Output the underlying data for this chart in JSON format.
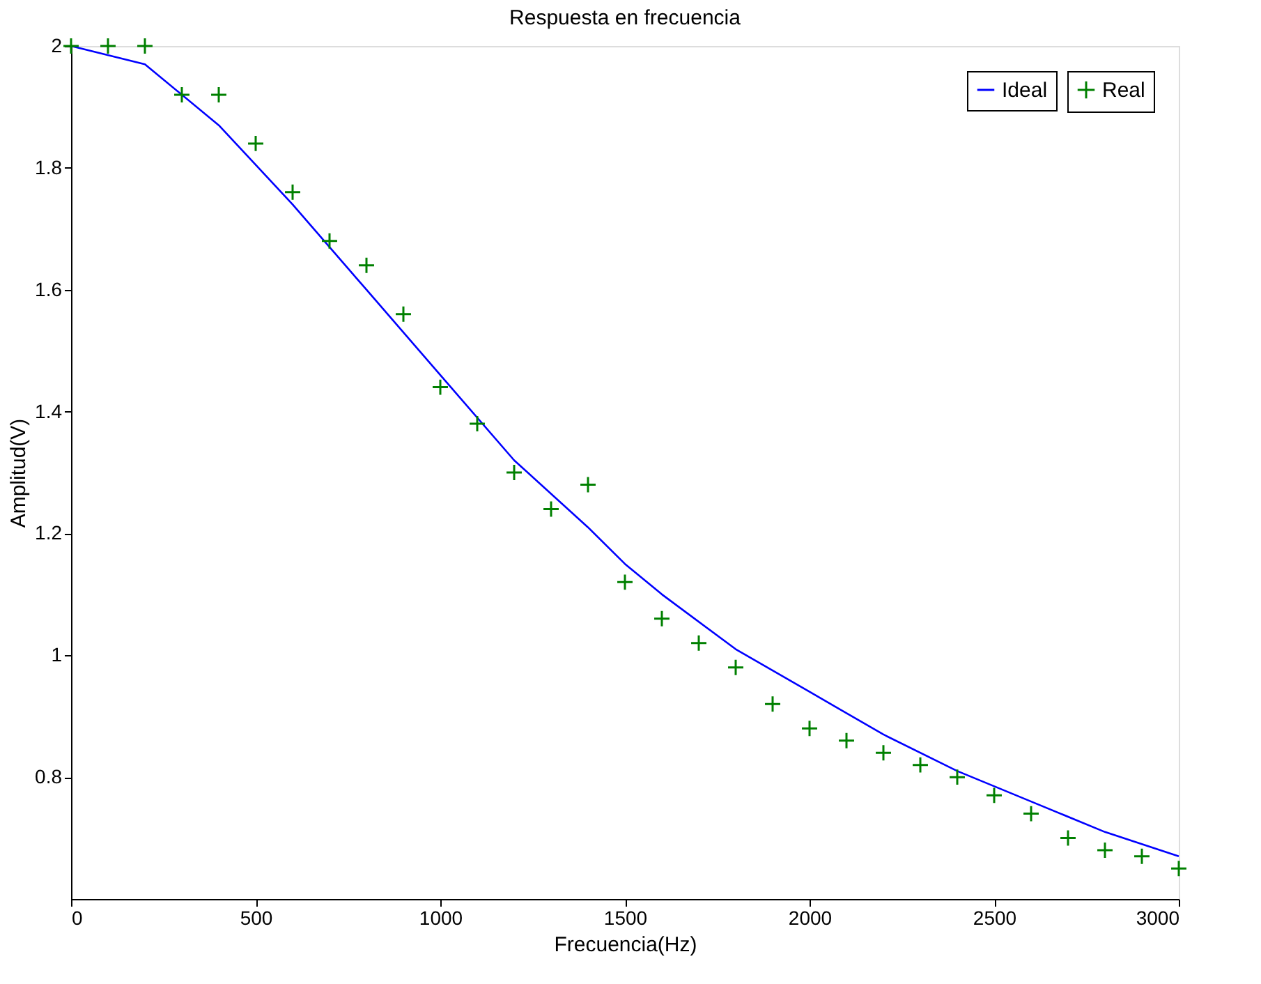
{
  "chart_data": {
    "type": "line",
    "title": "Respuesta en frecuencia",
    "xlabel": "Frecuencia(Hz)",
    "ylabel": "Amplitud(V)",
    "xlim": [
      0,
      3000
    ],
    "xticks": [
      0,
      500,
      1000,
      1500,
      2000,
      2500,
      3000
    ],
    "ylim": [
      0.6,
      2
    ],
    "yticks": [
      0.8,
      1,
      1.2,
      1.4,
      1.6,
      1.8,
      2
    ],
    "legend": "top right",
    "grid": false,
    "series": [
      {
        "name": "Ideal",
        "color": "#0000ff",
        "marker": "none",
        "line_style": "solid",
        "x": [
          0,
          200,
          400,
          600,
          800,
          1000,
          1200,
          1400,
          1500,
          1600,
          1800,
          2000,
          2200,
          2400,
          2600,
          2800,
          3000
        ],
        "values": [
          2.0,
          1.97,
          1.87,
          1.74,
          1.6,
          1.46,
          1.32,
          1.21,
          1.15,
          1.1,
          1.01,
          0.94,
          0.87,
          0.81,
          0.76,
          0.71,
          0.67
        ]
      },
      {
        "name": "Real",
        "type": "scatter",
        "color": "#008000",
        "marker": "cross",
        "x": [
          0,
          100,
          200,
          300,
          400,
          500,
          600,
          700,
          800,
          900,
          1000,
          1100,
          1200,
          1300,
          1400,
          1500,
          1600,
          1700,
          1800,
          1900,
          2000,
          2100,
          2200,
          2300,
          2400,
          2500,
          2600,
          2700,
          2800,
          2900,
          3000
        ],
        "values": [
          2.0,
          2.0,
          2.0,
          1.92,
          1.92,
          1.84,
          1.76,
          1.68,
          1.64,
          1.56,
          1.44,
          1.38,
          1.3,
          1.24,
          1.28,
          1.12,
          1.06,
          1.02,
          0.98,
          0.92,
          0.88,
          0.86,
          0.84,
          0.82,
          0.8,
          0.77,
          0.74,
          0.7,
          0.68,
          0.67,
          0.65
        ]
      }
    ]
  }
}
